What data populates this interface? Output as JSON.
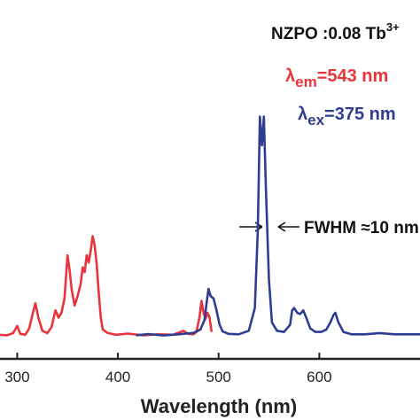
{
  "chart_data": {
    "type": "line",
    "title": "NZPO :0.08 Tb",
    "title_superscript": "3+",
    "xlabel": "Wavelength (nm)",
    "ylabel": "",
    "xlim": [
      275,
      700
    ],
    "ylim": [
      0,
      100
    ],
    "x_ticks": [
      {
        "value": 300,
        "label": "300"
      },
      {
        "value": 400,
        "label": "400"
      },
      {
        "value": 500,
        "label": "500"
      },
      {
        "value": 600,
        "label": "600"
      }
    ],
    "grid": false,
    "series": [
      {
        "name": "λem=543 nm",
        "label_prefix": "λ",
        "label_sub": "em",
        "label_rest": "=543 nm",
        "color": "#e8343a",
        "points": [
          [
            275,
            1
          ],
          [
            290,
            0.6
          ],
          [
            296,
            1.5
          ],
          [
            300,
            4.5
          ],
          [
            303,
            1.2
          ],
          [
            308,
            0.8
          ],
          [
            312,
            3.5
          ],
          [
            315,
            9
          ],
          [
            318,
            14
          ],
          [
            321,
            8
          ],
          [
            325,
            2.5
          ],
          [
            330,
            1.5
          ],
          [
            334,
            4
          ],
          [
            338,
            11
          ],
          [
            341,
            8
          ],
          [
            344,
            10
          ],
          [
            347,
            16
          ],
          [
            350,
            34
          ],
          [
            352,
            28
          ],
          [
            354,
            20
          ],
          [
            357,
            13
          ],
          [
            360,
            17
          ],
          [
            363,
            22
          ],
          [
            365,
            29
          ],
          [
            367,
            27
          ],
          [
            369,
            34
          ],
          [
            371,
            31
          ],
          [
            373,
            36
          ],
          [
            375,
            42
          ],
          [
            377,
            38
          ],
          [
            379,
            30
          ],
          [
            381,
            18
          ],
          [
            383,
            8
          ],
          [
            385,
            3
          ],
          [
            390,
            1.5
          ],
          [
            398,
            0.8
          ],
          [
            410,
            1.3
          ],
          [
            425,
            0.6
          ],
          [
            440,
            1
          ],
          [
            455,
            0.8
          ],
          [
            465,
            2.5
          ],
          [
            470,
            1.2
          ],
          [
            475,
            1
          ],
          [
            478,
            2
          ],
          [
            481,
            8
          ],
          [
            483,
            15
          ],
          [
            485,
            10
          ],
          [
            487,
            7.5
          ],
          [
            489,
            10
          ],
          [
            491,
            8
          ],
          [
            493,
            2
          ]
        ]
      },
      {
        "name": "λex=375 nm",
        "label_prefix": "λ",
        "label_sub": "ex",
        "label_rest": "=375 nm",
        "color": "#2e3d91",
        "points": [
          [
            418,
            0.6
          ],
          [
            430,
            1.1
          ],
          [
            445,
            0.5
          ],
          [
            460,
            1
          ],
          [
            475,
            1.6
          ],
          [
            482,
            3
          ],
          [
            486,
            7
          ],
          [
            488,
            14
          ],
          [
            490,
            20
          ],
          [
            492,
            17
          ],
          [
            495,
            16
          ],
          [
            498,
            11
          ],
          [
            501,
            5
          ],
          [
            504,
            2.2
          ],
          [
            510,
            1.2
          ],
          [
            520,
            1
          ],
          [
            530,
            2.5
          ],
          [
            536,
            12
          ],
          [
            539,
            45
          ],
          [
            541,
            92
          ],
          [
            543,
            80
          ],
          [
            545,
            92
          ],
          [
            547,
            62
          ],
          [
            550,
            24
          ],
          [
            553,
            6
          ],
          [
            558,
            2.5
          ],
          [
            565,
            2
          ],
          [
            571,
            5
          ],
          [
            573,
            11
          ],
          [
            575,
            12
          ],
          [
            578,
            10
          ],
          [
            581,
            9.5
          ],
          [
            584,
            11
          ],
          [
            587,
            8
          ],
          [
            591,
            3.5
          ],
          [
            596,
            2
          ],
          [
            602,
            2
          ],
          [
            607,
            3
          ],
          [
            611,
            6
          ],
          [
            614,
            9
          ],
          [
            616,
            10
          ],
          [
            619,
            6
          ],
          [
            624,
            2
          ],
          [
            632,
            1
          ],
          [
            645,
            1
          ],
          [
            660,
            1.5
          ],
          [
            675,
            1
          ],
          [
            700,
            1
          ]
        ]
      }
    ],
    "annotations": [
      {
        "text": "FWHM ≈10 nm",
        "near_x": 545
      }
    ]
  },
  "colors": {
    "axis": "#222222",
    "red": "#e8343a",
    "blue": "#2e3d91"
  }
}
